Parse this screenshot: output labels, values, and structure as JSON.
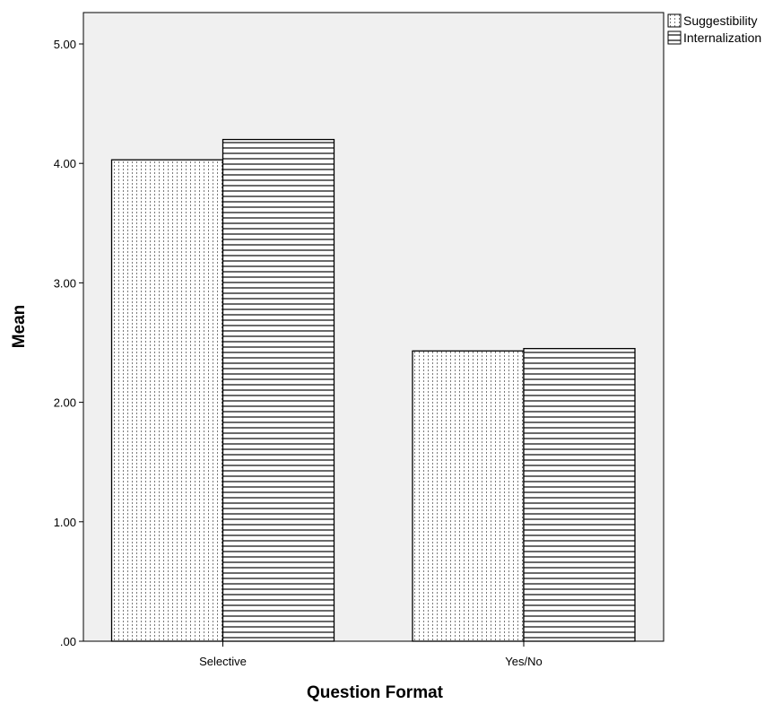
{
  "chart_data": {
    "type": "bar",
    "categories": [
      "Selective",
      "Yes/No"
    ],
    "series": [
      {
        "name": "Suggestibility",
        "values": [
          4.03,
          2.43
        ],
        "pattern": "dotted-vertical"
      },
      {
        "name": "Internalization",
        "values": [
          4.2,
          2.45
        ],
        "pattern": "horizontal-lines"
      }
    ],
    "xlabel": "Question Format",
    "ylabel": "Mean",
    "ylim": [
      0,
      5.5
    ],
    "yticks": [
      0,
      1,
      2,
      3,
      4,
      5
    ],
    "ytick_labels": [
      ".00",
      "1.00",
      "2.00",
      "3.00",
      "4.00",
      "5.00"
    ],
    "legend_position": "top-right",
    "grid": false,
    "colors": {
      "plot_background": "#f0f0f0",
      "bar_fill": "#ffffff",
      "stroke": "#000000"
    }
  }
}
